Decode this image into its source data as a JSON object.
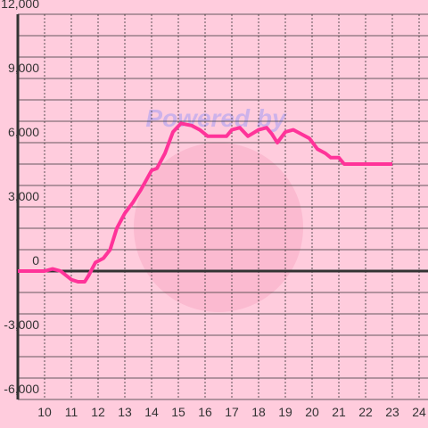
{
  "chart_data": {
    "type": "line",
    "watermark": "Powered by",
    "x": [
      9,
      10,
      10.3,
      10.6,
      11,
      11.25,
      11.5,
      11.65,
      11.9,
      12.2,
      12.45,
      12.7,
      13,
      13.3,
      13.6,
      14,
      14.2,
      14.5,
      14.8,
      15.1,
      15.5,
      15.8,
      16.1,
      16.5,
      16.8,
      17,
      17.3,
      17.6,
      18,
      18.3,
      18.5,
      18.7,
      19,
      19.3,
      19.6,
      19.9,
      20.2,
      20.5,
      20.7,
      21,
      21.2,
      23
    ],
    "values": [
      0,
      0,
      100,
      0,
      -400,
      -500,
      -500,
      -200,
      400,
      600,
      1000,
      2000,
      2700,
      3200,
      3800,
      4700,
      4800,
      5500,
      6500,
      6900,
      6800,
      6600,
      6300,
      6300,
      6300,
      6600,
      6700,
      6300,
      6600,
      6700,
      6400,
      6000,
      6500,
      6600,
      6400,
      6200,
      5700,
      5500,
      5300,
      5300,
      5000,
      5000
    ],
    "color": "#ff3399",
    "xlim": [
      9,
      24.3
    ],
    "xticks": [
      10,
      11,
      12,
      13,
      14,
      15,
      16,
      17,
      18,
      19,
      20,
      21,
      22,
      23,
      24
    ],
    "ylim": [
      -6000,
      12000
    ],
    "yticks": [
      {
        "value": 12000,
        "label": "12,000"
      },
      {
        "value": 9000,
        "label": "9,000"
      },
      {
        "value": 6000,
        "label": "6,000"
      },
      {
        "value": 3000,
        "label": "3,000"
      },
      0,
      {
        "value": -3000,
        "label": "-3,000"
      },
      {
        "value": -6000,
        "label": "-6,000"
      }
    ],
    "y_minor_ticks": [
      -5000,
      -4000,
      -2000,
      -1000,
      1000,
      2000,
      4000,
      5000,
      7000,
      8000,
      10000,
      11000
    ],
    "grid": true
  }
}
